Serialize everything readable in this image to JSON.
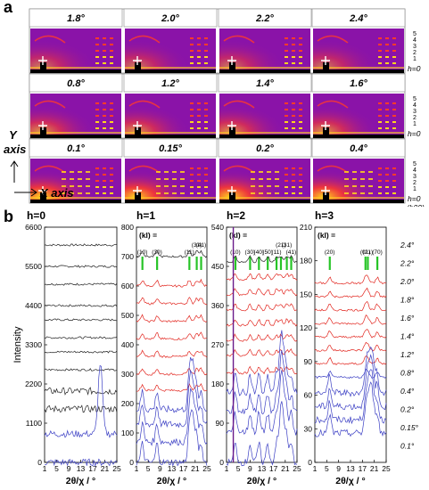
{
  "panel_a": {
    "letter": "a",
    "rows": [
      {
        "angles": [
          "1.8°",
          "2.0°",
          "2.2°",
          "2.4°"
        ],
        "side_labels": [
          "5",
          "4",
          "3",
          "2",
          "1"
        ],
        "h_label": "h=0"
      },
      {
        "angles": [
          "0.8°",
          "1.2°",
          "1.4°",
          "1.6°"
        ],
        "side_labels": [
          "5",
          "4",
          "3",
          "2",
          "1"
        ],
        "h_label": "h=0"
      },
      {
        "angles": [
          "0.1°",
          "0.15°",
          "0.2°",
          "0.4°"
        ],
        "side_labels": [
          "5",
          "4",
          "3",
          "2",
          "1"
        ],
        "h_label": "h=0",
        "h00_label": "(h00)"
      }
    ],
    "y_axis_label": "Y axis",
    "x_axis_label": "X axis",
    "colors": {
      "background": "#8a13a8",
      "hot": "#ffd21f",
      "warm": "#ff3b2a",
      "beam": "#000000"
    }
  },
  "panel_b": {
    "letter": "b",
    "shared_ylabel": "Intensity",
    "xlabel": "2θ/χ / °",
    "angle_labels": [
      "2.4°",
      "2.2°",
      "2.0°",
      "1.8°",
      "1.6°",
      "1.4°",
      "1.2°",
      "0.8°",
      "0.4°",
      "0.2°",
      "0.15°",
      "0.1°"
    ],
    "line_colors": {
      "red": "#e2261f",
      "blue": "#3b3fc4",
      "black": "#222222",
      "marker": "#27c427"
    }
  },
  "chart_data": [
    {
      "type": "line",
      "title": "h=0",
      "xlabel": "2θ/χ / °",
      "ylabel": "Intensity",
      "xlim": [
        1,
        25
      ],
      "ylim": [
        0,
        6600
      ],
      "x_ticks": [
        "1",
        "5",
        "9",
        "13",
        "17",
        "21",
        "25"
      ],
      "y_ticks": [
        "0",
        "1100",
        "2200",
        "3300",
        "4400",
        "5500",
        "6600"
      ],
      "baselines": [
        6100,
        5500,
        5000,
        4400,
        4000,
        3500,
        3100,
        2600,
        2000,
        1500,
        800,
        0
      ],
      "reflections": []
    },
    {
      "type": "line",
      "title": "h=1",
      "xlabel": "2θ/χ / °",
      "xlim": [
        1,
        25
      ],
      "ylim": [
        0,
        800
      ],
      "x_ticks": [
        "1",
        "5",
        "9",
        "13",
        "17",
        "21",
        "25"
      ],
      "y_ticks": [
        "0",
        "100",
        "200",
        "300",
        "400",
        "500",
        "600",
        "700",
        "800"
      ],
      "baselines": [
        700,
        600,
        540,
        480,
        420,
        360,
        300,
        245,
        180,
        130,
        70,
        0
      ],
      "reflections": [
        {
          "label": "(10)",
          "x": 3
        },
        {
          "label": "(30)",
          "x": 8
        },
        {
          "label": "(11)",
          "x": 19
        },
        {
          "label": "(31)",
          "x": 21.5
        },
        {
          "label": "(41)",
          "x": 23
        }
      ],
      "kl_label": "(kl) ="
    },
    {
      "type": "line",
      "title": "h=2",
      "xlabel": "2θ/χ / °",
      "xlim": [
        1,
        25
      ],
      "ylim": [
        0,
        540
      ],
      "x_ticks": [
        "1",
        "5",
        "9",
        "13",
        "17",
        "21",
        "25"
      ],
      "y_ticks": [
        "0",
        "90",
        "180",
        "270",
        "360",
        "450",
        "540"
      ],
      "baselines": [
        460,
        420,
        385,
        350,
        315,
        280,
        245,
        205,
        160,
        115,
        70,
        0
      ],
      "reflections": [
        {
          "label": "(10)",
          "x": 4
        },
        {
          "label": "(30)",
          "x": 9
        },
        {
          "label": "(40)",
          "x": 12
        },
        {
          "label": "(50)",
          "x": 15
        },
        {
          "label": "(11)",
          "x": 18
        },
        {
          "label": "(21)",
          "x": 19.5
        },
        {
          "label": "(31)",
          "x": 21.5
        },
        {
          "label": "(41)",
          "x": 23
        }
      ],
      "kl_label": "(kl) ="
    },
    {
      "type": "line",
      "title": "h=3",
      "xlabel": "2θ/χ / °",
      "xlim": [
        1,
        25
      ],
      "ylim": [
        0,
        210
      ],
      "x_ticks": [
        "1",
        "5",
        "9",
        "13",
        "17",
        "21",
        "25"
      ],
      "y_ticks": [
        "0",
        "30",
        "60",
        "90",
        "120",
        "150",
        "180",
        "210"
      ],
      "baselines": [
        160,
        148,
        136,
        124,
        112,
        100,
        88,
        76,
        62,
        50,
        38,
        26
      ],
      "reflections": [
        {
          "label": "(20)",
          "x": 6
        },
        {
          "label": "(21)",
          "x": 18.8
        },
        {
          "label": "(01)",
          "x": 18
        },
        {
          "label": "(70)",
          "x": 22
        }
      ],
      "kl_label": "(kl) ="
    }
  ]
}
